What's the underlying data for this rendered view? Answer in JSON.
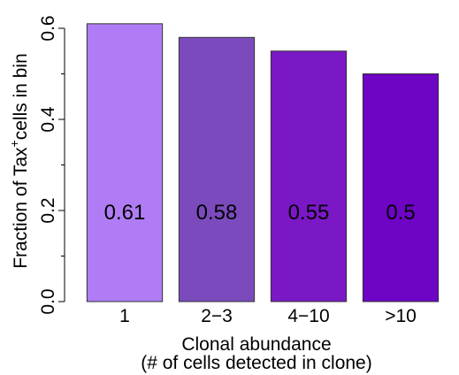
{
  "chart_data": {
    "type": "bar",
    "categories": [
      "1",
      "2−3",
      "4−10",
      ">10"
    ],
    "values": [
      0.61,
      0.58,
      0.55,
      0.5
    ],
    "bar_labels": [
      "0.61",
      "0.58",
      "0.55",
      "0.5"
    ],
    "colors": [
      "#B07CF5",
      "#7B4BBE",
      "#7A18C6",
      "#6E04C4"
    ],
    "ylim": [
      0,
      0.6
    ],
    "yticks": [
      0.0,
      0.2,
      0.4,
      0.6
    ],
    "ytick_labels": [
      "0.0",
      "0.2",
      "0.4",
      "0.6"
    ],
    "yminor_ticks": [
      0.1,
      0.3,
      0.5
    ],
    "ylabel": {
      "prefix": "Fraction of Tax",
      "superscript": "+",
      "suffix": "cells in bin"
    },
    "xlabel": {
      "line1": "Clonal abundance",
      "line2": "(# of cells detected in clone)"
    },
    "grid": false,
    "legend": "none"
  }
}
